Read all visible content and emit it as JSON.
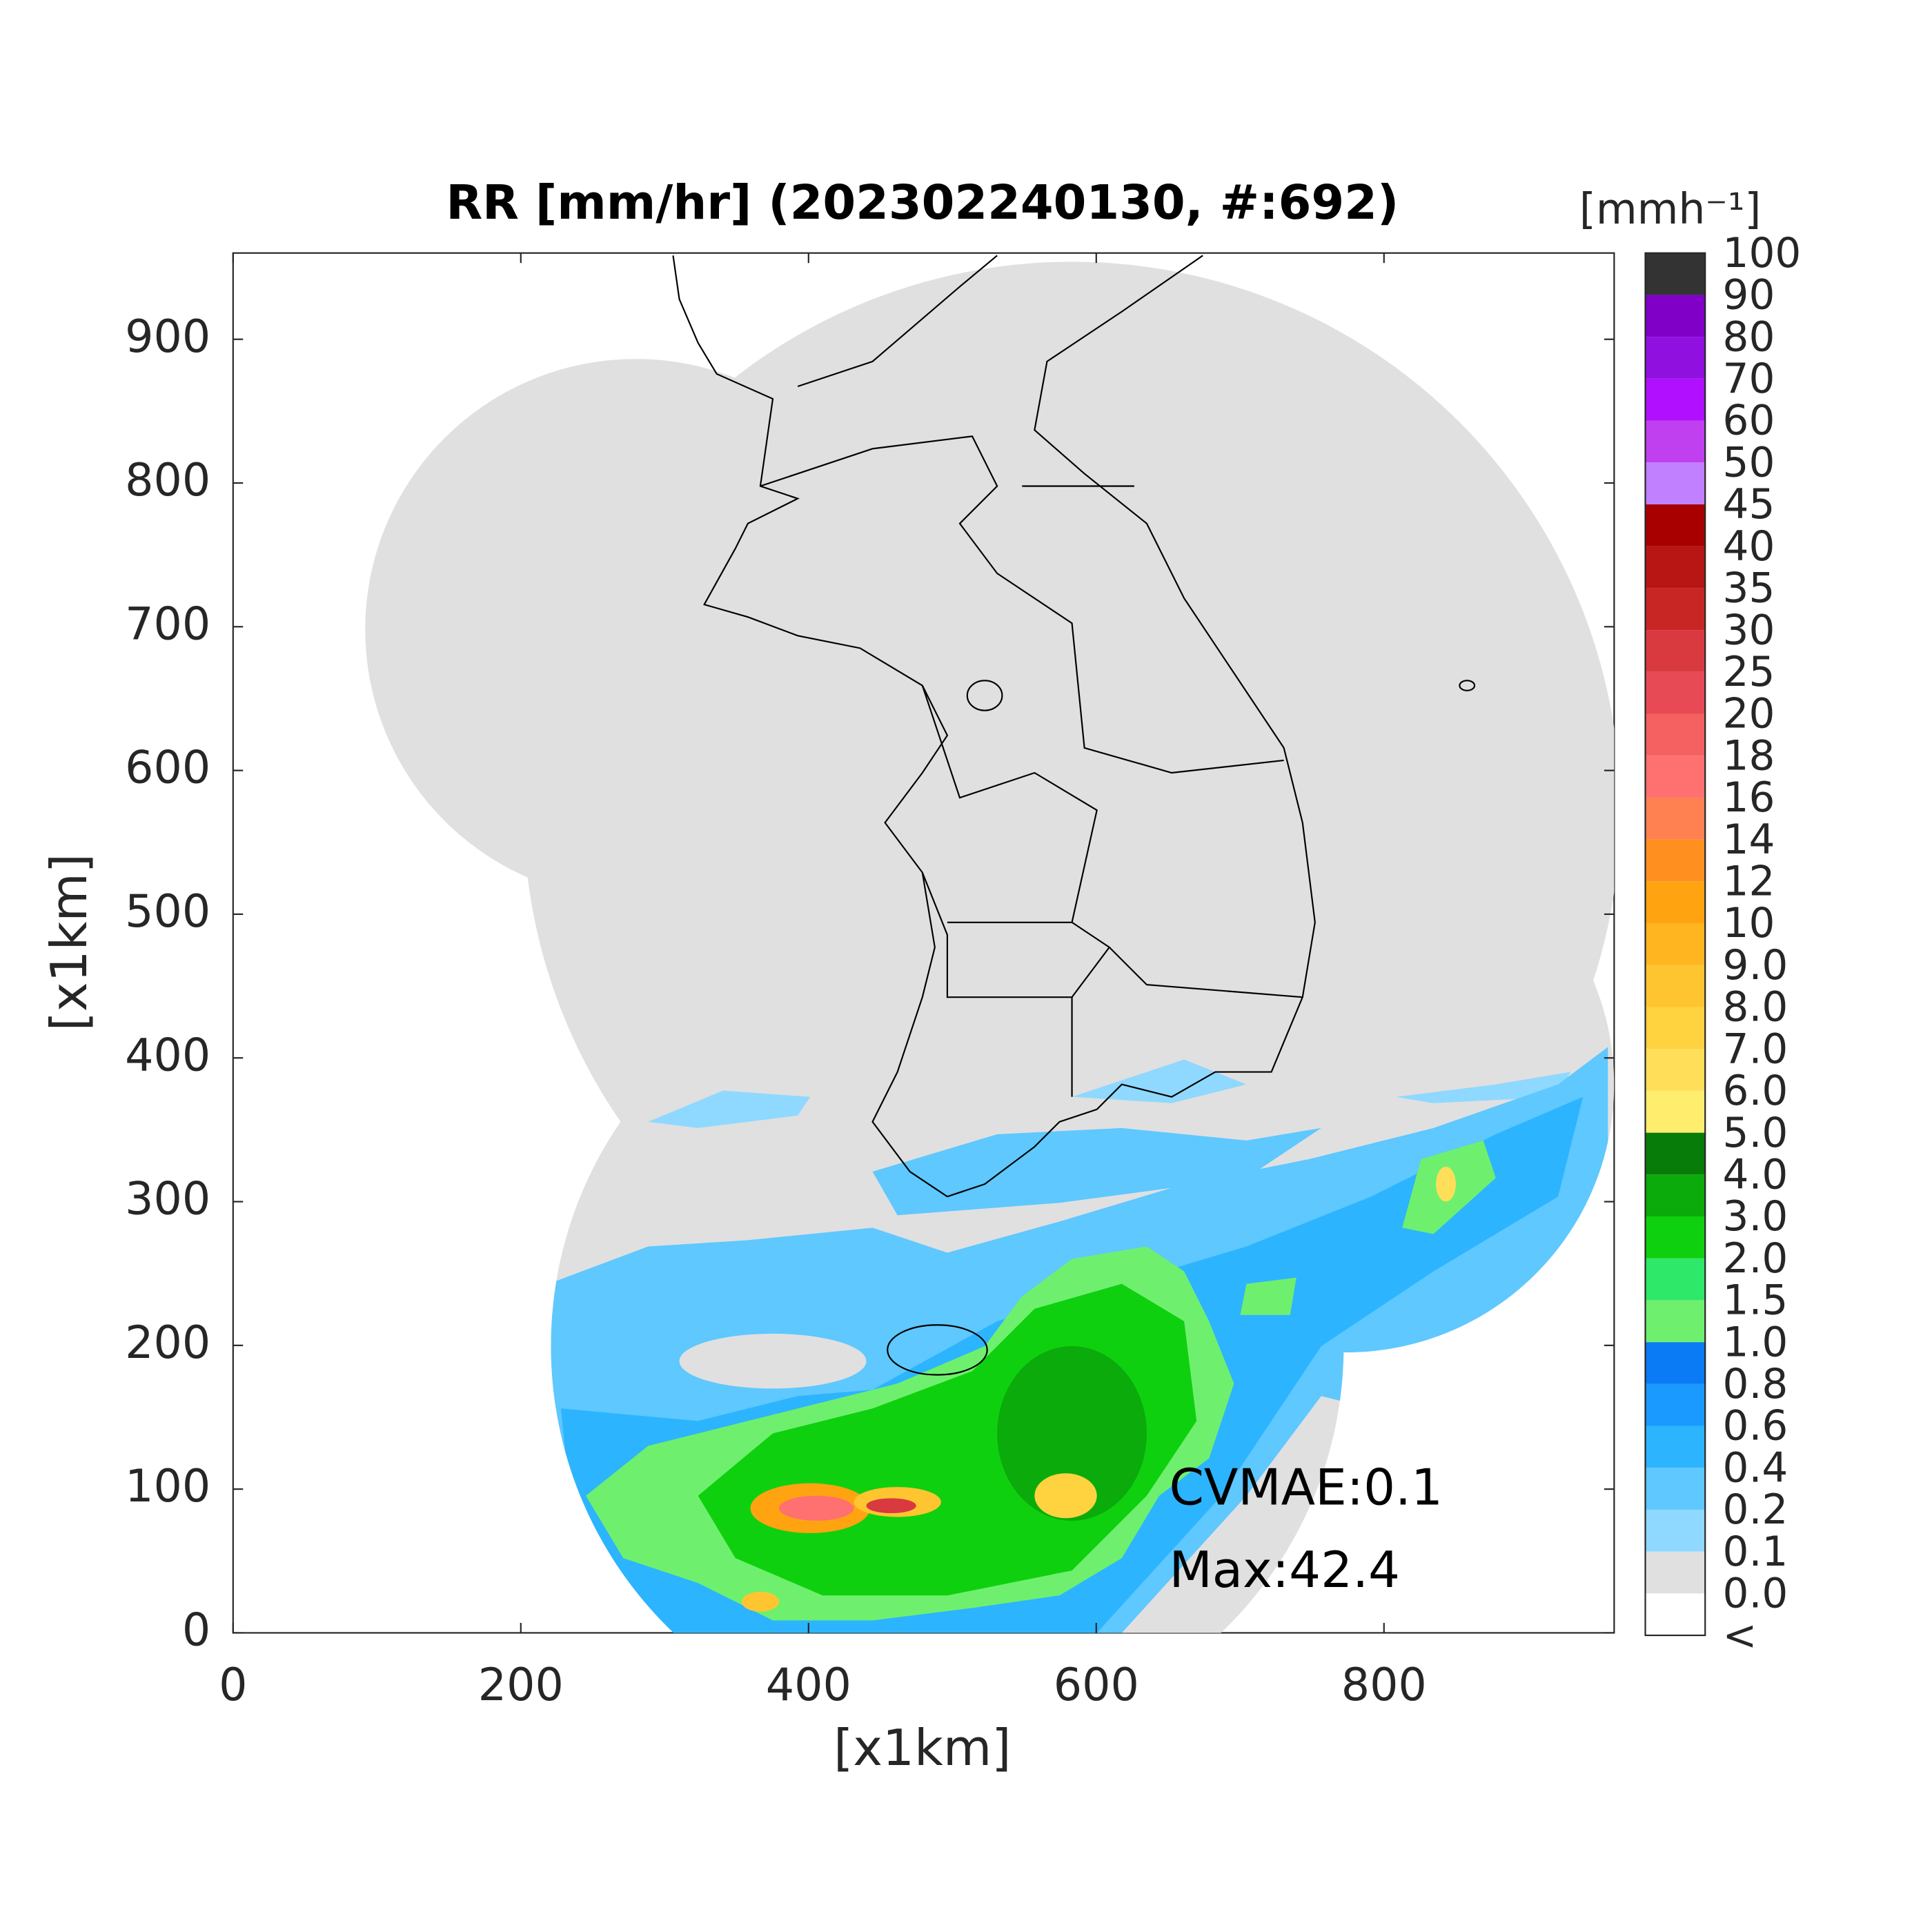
{
  "chart_data": {
    "type": "map",
    "title": "RR [mm/hr] (202302240130, #:692)",
    "x_label": "[x1km]",
    "y_label": "[x1km]",
    "xlim": [
      0,
      960
    ],
    "ylim": [
      0,
      960
    ],
    "xticks": [
      0,
      200,
      400,
      600,
      800
    ],
    "yticks": [
      0,
      100,
      200,
      300,
      400,
      500,
      600,
      700,
      800,
      900
    ],
    "annotations": [
      "CVMAE:0.1",
      "Max:42.4"
    ],
    "colorbar": {
      "title": "[mmh⁻¹]",
      "labels": [
        "<",
        "0.0",
        "0.1",
        "0.2",
        "0.4",
        "0.6",
        "0.8",
        "1.0",
        "1.5",
        "2.0",
        "3.0",
        "4.0",
        "5.0",
        "6.0",
        "7.0",
        "8.0",
        "9.0",
        "10",
        "12",
        "14",
        "16",
        "18",
        "20",
        "25",
        "30",
        "35",
        "40",
        "45",
        "50",
        "60",
        "70",
        "80",
        "90",
        "100"
      ],
      "colors": [
        "#ffffff",
        "#e0e0e0",
        "#8fd8ff",
        "#5ec8ff",
        "#2db4ff",
        "#1a9aff",
        "#0a7af5",
        "#6ef06e",
        "#2ee86a",
        "#0fd00f",
        "#0aab0a",
        "#087c08",
        "#ffee6e",
        "#ffde5a",
        "#ffd240",
        "#ffc530",
        "#ffb520",
        "#ffa410",
        "#ff9020",
        "#ff8050",
        "#ff7070",
        "#f56060",
        "#e84a55",
        "#d83a40",
        "#c82525",
        "#b81515",
        "#a80000",
        "#c080ff",
        "#c040f0",
        "#b010ff",
        "#9010e0",
        "#8000c8",
        "#333333"
      ]
    }
  }
}
